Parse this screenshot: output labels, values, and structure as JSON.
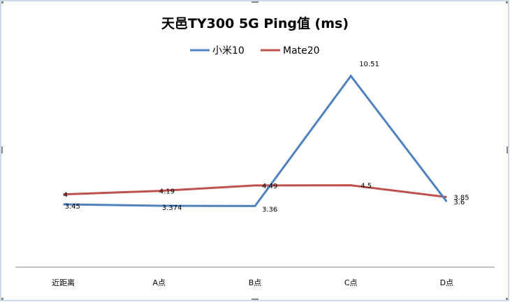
{
  "chart_data": {
    "type": "line",
    "title": "天邑TY300 5G Ping值 (ms)",
    "categories": [
      "近距离",
      "A点",
      "B点",
      "C点",
      "D点"
    ],
    "series": [
      {
        "name": "小米10",
        "values": [
          3.45,
          3.374,
          3.36,
          10.51,
          3.6
        ],
        "labels": [
          "3.45",
          "3.374",
          "3.36",
          "10.51",
          "3.6"
        ],
        "color": "#4f81bd"
      },
      {
        "name": "Mate20",
        "values": [
          4,
          4.19,
          4.49,
          4.5,
          3.85
        ],
        "labels": [
          "4",
          "4.19",
          "4.49",
          "4.5",
          "3.85"
        ],
        "color": "#c0504d"
      }
    ],
    "ylim": [
      0,
      12
    ],
    "grid": false,
    "legend": "top",
    "xlabel": "",
    "ylabel": ""
  }
}
